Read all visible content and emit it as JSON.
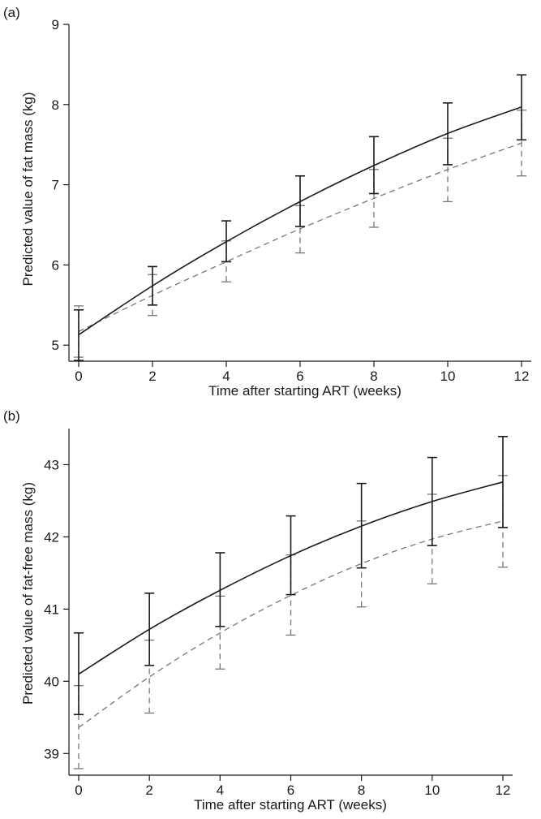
{
  "chart_data": [
    {
      "type": "line",
      "panel_label": "(a)",
      "xlabel": "Time after starting ART (weeks)",
      "ylabel": "Predicted value of fat mass (kg)",
      "xlim": [
        0,
        12
      ],
      "ylim": [
        4.8,
        9.0
      ],
      "xticks": [
        0,
        2,
        4,
        6,
        8,
        10,
        12
      ],
      "yticks": [
        5,
        6,
        7,
        8,
        9
      ],
      "grid": false,
      "x": [
        0,
        2,
        4,
        6,
        8,
        10,
        12
      ],
      "series": [
        {
          "style": "solid",
          "color": "#1a1a1a",
          "values": [
            5.13,
            5.74,
            6.29,
            6.79,
            7.24,
            7.64,
            7.97
          ],
          "lower": [
            4.81,
            5.5,
            6.04,
            6.48,
            6.89,
            7.25,
            7.56
          ],
          "upper": [
            5.44,
            5.98,
            6.55,
            7.11,
            7.6,
            8.02,
            8.37
          ]
        },
        {
          "style": "dashed",
          "color": "#777777",
          "values": [
            5.17,
            5.62,
            6.04,
            6.45,
            6.83,
            7.19,
            7.52
          ],
          "lower": [
            4.85,
            5.37,
            5.79,
            6.15,
            6.47,
            6.79,
            7.11
          ],
          "upper": [
            5.49,
            5.88,
            6.3,
            6.74,
            7.19,
            7.58,
            7.93
          ]
        }
      ]
    },
    {
      "type": "line",
      "panel_label": "(b)",
      "xlabel": "Time after starting ART (weeks)",
      "ylabel": "Predicted value of fat-free mass (kg)",
      "xlim": [
        0,
        12
      ],
      "ylim": [
        38.7,
        43.5
      ],
      "xticks": [
        0,
        2,
        4,
        6,
        8,
        10,
        12
      ],
      "yticks": [
        39,
        40,
        41,
        42,
        43
      ],
      "grid": false,
      "x": [
        0,
        2,
        4,
        6,
        8,
        10,
        12
      ],
      "series": [
        {
          "style": "solid",
          "color": "#1a1a1a",
          "values": [
            40.1,
            40.72,
            41.26,
            41.74,
            42.15,
            42.49,
            42.76
          ],
          "lower": [
            39.54,
            40.22,
            40.76,
            41.2,
            41.57,
            41.88,
            42.13
          ],
          "upper": [
            40.67,
            41.22,
            41.78,
            42.29,
            42.74,
            43.1,
            43.39
          ]
        },
        {
          "style": "dashed",
          "color": "#777777",
          "values": [
            39.36,
            40.06,
            40.67,
            41.19,
            41.63,
            41.97,
            42.22
          ],
          "lower": [
            38.79,
            39.56,
            40.17,
            40.64,
            41.03,
            41.35,
            41.58
          ],
          "upper": [
            39.94,
            40.57,
            41.18,
            41.75,
            42.22,
            42.59,
            42.85
          ]
        }
      ]
    }
  ]
}
